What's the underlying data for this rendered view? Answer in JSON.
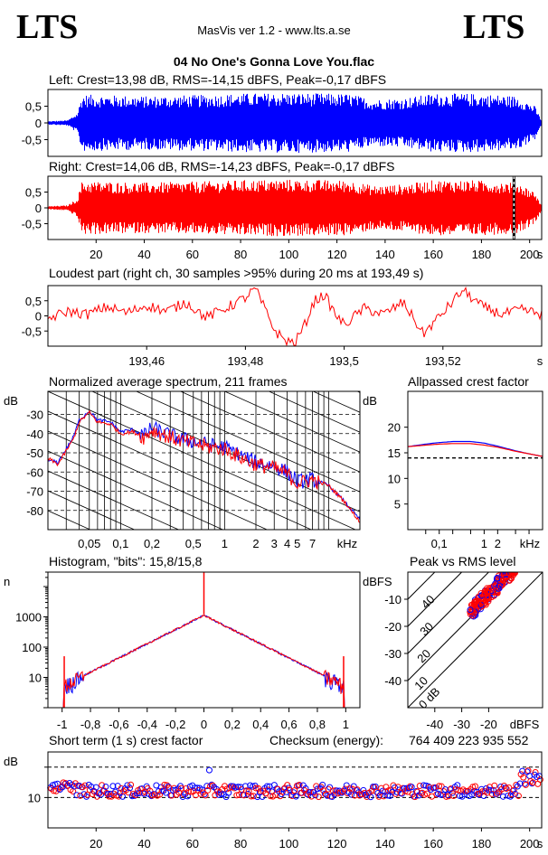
{
  "header": {
    "logo_left": "LTS",
    "logo_right": "LTS",
    "app_title": "MasVis ver 1.2 - www.lts.a.se",
    "file_name": "04 No One's Gonna Love You.flac"
  },
  "colors": {
    "left": "#0000ff",
    "right": "#ff0000"
  },
  "chart_data": [
    {
      "id": "left",
      "type": "line",
      "title": "Left: Crest=13,98 dB, RMS=-14,15 dBFS, Peak=-0,17 dBFS",
      "xlim": [
        0,
        205
      ],
      "ylim": [
        -1,
        1
      ],
      "yticks": [
        0.5,
        0,
        -0.5
      ],
      "ytick_labels": [
        "0,5",
        "0",
        "-0,5"
      ],
      "envelope": {
        "t": [
          0,
          8,
          12,
          14,
          40,
          70,
          80,
          100,
          125,
          135,
          148,
          160,
          175,
          185,
          195,
          202,
          205
        ],
        "amp": [
          0.05,
          0.08,
          0.3,
          0.85,
          0.8,
          0.85,
          0.88,
          0.9,
          0.87,
          0.7,
          0.75,
          0.88,
          0.88,
          0.85,
          0.8,
          0.5,
          0.05
        ]
      }
    },
    {
      "id": "right",
      "type": "line",
      "title": "Right: Crest=14,06 dB, RMS=-14,23 dBFS, Peak=-0,17 dBFS",
      "xlim": [
        0,
        205
      ],
      "ylim": [
        -1,
        1
      ],
      "yticks": [
        0.5,
        0,
        -0.5
      ],
      "ytick_labels": [
        "0,5",
        "0",
        "-0,5"
      ],
      "xticks": [
        20,
        40,
        60,
        80,
        100,
        120,
        140,
        160,
        180,
        200
      ],
      "xtick_labels": [
        "20",
        "40",
        "60",
        "80",
        "100",
        "120",
        "140",
        "160",
        "180",
        "200"
      ],
      "xunit": "s",
      "marker_x": 193.49,
      "envelope": {
        "t": [
          0,
          8,
          12,
          14,
          40,
          70,
          80,
          100,
          125,
          135,
          148,
          160,
          175,
          185,
          195,
          202,
          205
        ],
        "amp": [
          0.05,
          0.08,
          0.3,
          0.85,
          0.8,
          0.85,
          0.88,
          0.9,
          0.87,
          0.7,
          0.75,
          0.88,
          0.88,
          0.85,
          0.8,
          0.5,
          0.05
        ]
      }
    },
    {
      "id": "loudest",
      "type": "line",
      "title": "Loudest part (right ch, 30 samples >95% during 20 ms at 193,49 s)",
      "xlim": [
        193.44,
        193.54
      ],
      "ylim": [
        -1,
        1
      ],
      "yticks": [
        0.5,
        0,
        -0.5
      ],
      "ytick_labels": [
        "0,5",
        "0",
        "-0,5"
      ],
      "xticks": [
        193.46,
        193.48,
        193.5,
        193.52
      ],
      "xtick_labels": [
        "193,46",
        "193,48",
        "193,5",
        "193,52"
      ],
      "xunit": "s",
      "x": [
        193.44,
        193.444,
        193.448,
        193.452,
        193.456,
        193.46,
        193.464,
        193.468,
        193.472,
        193.476,
        193.48,
        193.482,
        193.484,
        193.486,
        193.488,
        193.49,
        193.492,
        193.494,
        193.496,
        193.498,
        193.5,
        193.504,
        193.508,
        193.512,
        193.516,
        193.52,
        193.524,
        193.528,
        193.532,
        193.536,
        193.54
      ],
      "y": [
        -0.1,
        0.15,
        0.05,
        0.3,
        0.1,
        0.35,
        0.15,
        0.45,
        -0.05,
        0.25,
        0.6,
        0.9,
        0.2,
        -0.5,
        -0.8,
        -0.9,
        -0.3,
        0.5,
        0.7,
        0.1,
        -0.3,
        0.25,
        0.05,
        0.45,
        -0.6,
        0.1,
        0.85,
        0.3,
        0.05,
        0.2,
        0.05
      ]
    },
    {
      "id": "spectrum",
      "type": "line",
      "title": "Normalized average spectrum, 211 frames",
      "ylabel": "dB",
      "xunit": "kHz",
      "xscale": "log",
      "xlim": [
        0.02,
        20
      ],
      "ylim": [
        -90,
        -18
      ],
      "yticks": [
        -30,
        -40,
        -50,
        -60,
        -70,
        -80
      ],
      "xtick_labels": [
        "0,05",
        "0,1",
        "0,2",
        "0,5",
        "1",
        "2",
        "3",
        "4",
        "5",
        "7"
      ],
      "xtick_values": [
        0.05,
        0.1,
        0.2,
        0.5,
        1,
        2,
        3,
        4,
        5,
        7
      ],
      "x": [
        0.02,
        0.025,
        0.03,
        0.035,
        0.04,
        0.05,
        0.06,
        0.08,
        0.1,
        0.13,
        0.17,
        0.2,
        0.3,
        0.4,
        0.5,
        0.7,
        1,
        1.5,
        2,
        3,
        4,
        5,
        7,
        10,
        14,
        20
      ],
      "series": [
        {
          "color": "#0000ff",
          "y": [
            -54,
            -55,
            -48,
            -42,
            -33,
            -28,
            -33,
            -34,
            -39,
            -38,
            -41,
            -37,
            -41,
            -43,
            -44,
            -46,
            -47,
            -52,
            -55,
            -57,
            -60,
            -65,
            -64,
            -67,
            -75,
            -85
          ]
        },
        {
          "color": "#ff0000",
          "y": [
            -53,
            -56,
            -49,
            -43,
            -34,
            -29,
            -34,
            -35,
            -40,
            -39,
            -42,
            -38,
            -42,
            -44,
            -45,
            -47,
            -48,
            -53,
            -56,
            -58,
            -61,
            -66,
            -64,
            -67,
            -75,
            -86
          ]
        }
      ]
    },
    {
      "id": "crest-allpass",
      "type": "line",
      "title": "Allpassed crest factor",
      "ylabel": "dB",
      "xunit": "kHz",
      "xscale": "log",
      "xlim": [
        0.02,
        20
      ],
      "ylim": [
        0,
        27
      ],
      "yticks": [
        20,
        15,
        10,
        5
      ],
      "xtick_labels": [
        "0,1",
        "1",
        "2"
      ],
      "xtick_values": [
        0.1,
        1,
        2
      ],
      "reference_level": 14,
      "x": [
        0.02,
        0.05,
        0.1,
        0.2,
        0.5,
        1,
        2,
        5,
        10,
        20
      ],
      "series": [
        {
          "color": "#0000ff",
          "y": [
            16.2,
            16.7,
            17.0,
            17.2,
            17.2,
            16.9,
            16.3,
            15.4,
            14.8,
            14.3
          ]
        },
        {
          "color": "#ff0000",
          "y": [
            16.2,
            16.5,
            16.7,
            16.8,
            16.8,
            16.5,
            16.1,
            15.3,
            14.8,
            14.3
          ]
        }
      ]
    },
    {
      "id": "histogram",
      "type": "bar",
      "title": "Histogram, \"bits\": 15,8/15,8",
      "ylabel": "n",
      "yscale": "log",
      "xlim": [
        -1.1,
        1.1
      ],
      "ylim": [
        1,
        30000
      ],
      "yticks": [
        1000,
        100,
        10
      ],
      "ytick_labels": [
        "1000",
        "100",
        "10"
      ],
      "xticks": [
        -1,
        -0.8,
        -0.6,
        -0.4,
        -0.2,
        0,
        0.2,
        0.4,
        0.6,
        0.8,
        1
      ],
      "xtick_labels": [
        "-1",
        "-0,8",
        "-0,6",
        "-0,4",
        "-0,2",
        "0",
        "0,2",
        "0,4",
        "0,6",
        "0,8",
        "1"
      ]
    },
    {
      "id": "peak-vs-rms",
      "type": "scatter",
      "title": "Peak vs RMS level",
      "ylabel": "dBFS",
      "xunit": "dBFS",
      "xlim": [
        -50,
        0
      ],
      "ylim": [
        -50,
        0
      ],
      "yticks": [
        -10,
        -20,
        -30,
        -40
      ],
      "xticks": [
        -40,
        -30,
        -20
      ],
      "diagonal_labels": [
        "40",
        "30",
        "20",
        "10",
        "0 dB"
      ]
    },
    {
      "id": "short-term-crest",
      "type": "scatter",
      "title": "Short term (1 s) crest factor",
      "ylabel": "dB",
      "checksum_label": "Checksum (energy):",
      "checksum_value": "764 409 223 935 552",
      "xlim": [
        0,
        205
      ],
      "ylim": [
        0,
        25
      ],
      "yticks": [
        10
      ],
      "xticks": [
        20,
        40,
        60,
        80,
        100,
        120,
        140,
        160,
        180,
        200
      ],
      "xtick_labels": [
        "20",
        "40",
        "60",
        "80",
        "100",
        "120",
        "140",
        "160",
        "180",
        "200"
      ],
      "xunit": "s",
      "ref_lines": [
        10,
        20
      ]
    }
  ]
}
